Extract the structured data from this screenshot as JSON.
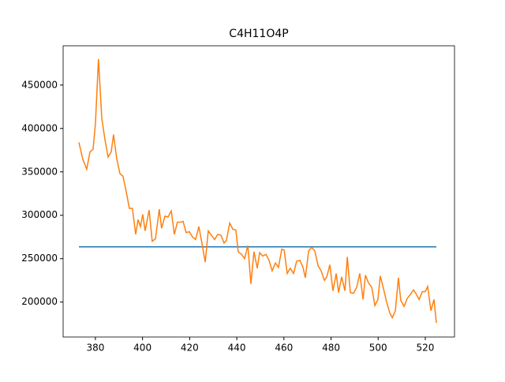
{
  "chart_data": {
    "type": "line",
    "title": "C4H11O4P",
    "xlim": [
      366.3,
      532.4
    ],
    "xticks": [
      380,
      400,
      420,
      440,
      460,
      480,
      500,
      520
    ],
    "ylim": [
      159750,
      495250
    ],
    "yticks": [
      200000,
      250000,
      300000,
      350000,
      400000,
      450000
    ],
    "series": [
      {
        "color": "#1f77b4",
        "x": [
          373.0,
          524.7
        ],
        "values": [
          263600,
          263600
        ]
      },
      {
        "color": "#ff7f0e",
        "x": [
          373.0,
          374.6,
          376.3,
          377.7,
          379.0,
          380.0,
          381.3,
          382.7,
          384.0,
          385.4,
          386.7,
          387.7,
          389.0,
          390.4,
          391.7,
          393.1,
          394.4,
          395.7,
          397.1,
          398.1,
          399.1,
          400.1,
          401.1,
          402.8,
          404.1,
          405.5,
          407.1,
          408.1,
          409.5,
          410.8,
          412.2,
          413.5,
          414.8,
          416.2,
          417.2,
          418.5,
          419.9,
          421.2,
          422.5,
          423.9,
          425.2,
          426.6,
          427.9,
          429.2,
          430.6,
          431.9,
          433.3,
          434.6,
          435.6,
          437.0,
          438.3,
          439.6,
          440.6,
          442.0,
          443.3,
          444.7,
          446.0,
          447.3,
          448.7,
          449.7,
          451.0,
          452.4,
          453.7,
          455.0,
          456.4,
          457.7,
          459.1,
          460.1,
          461.4,
          462.7,
          464.1,
          465.4,
          466.8,
          468.1,
          469.1,
          470.5,
          471.8,
          473.1,
          474.5,
          475.8,
          477.2,
          478.2,
          479.5,
          480.8,
          482.2,
          483.2,
          484.5,
          485.9,
          486.9,
          488.2,
          489.5,
          490.9,
          492.2,
          493.6,
          494.6,
          495.9,
          497.3,
          498.6,
          499.9,
          500.9,
          502.3,
          503.6,
          505.0,
          506.0,
          507.3,
          508.6,
          509.6,
          511.0,
          512.3,
          513.7,
          515.0,
          516.0,
          517.4,
          518.7,
          520.0,
          521.0,
          522.4,
          523.7,
          524.7
        ],
        "values": [
          384000,
          365000,
          353000,
          373000,
          376000,
          405000,
          480000,
          412000,
          388000,
          367000,
          373000,
          393000,
          366000,
          348000,
          345000,
          327000,
          308000,
          308000,
          278000,
          295000,
          287000,
          301000,
          282000,
          306000,
          270000,
          273000,
          307000,
          285000,
          299000,
          298000,
          305000,
          278000,
          292000,
          292000,
          293000,
          280000,
          281000,
          275000,
          272000,
          287000,
          268000,
          246000,
          282000,
          277000,
          272000,
          278000,
          277000,
          268000,
          271000,
          291000,
          284000,
          283000,
          258000,
          255000,
          250000,
          265000,
          221000,
          258000,
          239000,
          257000,
          253000,
          255000,
          248000,
          236000,
          245000,
          240000,
          261000,
          260000,
          233000,
          239000,
          233000,
          247000,
          248000,
          240000,
          228000,
          259000,
          263000,
          259000,
          242000,
          236000,
          225000,
          229000,
          243000,
          213000,
          233000,
          211000,
          229000,
          213000,
          252000,
          211000,
          210000,
          217000,
          233000,
          203000,
          231000,
          222000,
          217000,
          196000,
          203000,
          230000,
          215000,
          200000,
          187000,
          182000,
          190000,
          228000,
          202000,
          195000,
          204000,
          209000,
          214000,
          210000,
          203000,
          212000,
          212000,
          218000,
          190000,
          203000,
          176000
        ]
      }
    ]
  }
}
